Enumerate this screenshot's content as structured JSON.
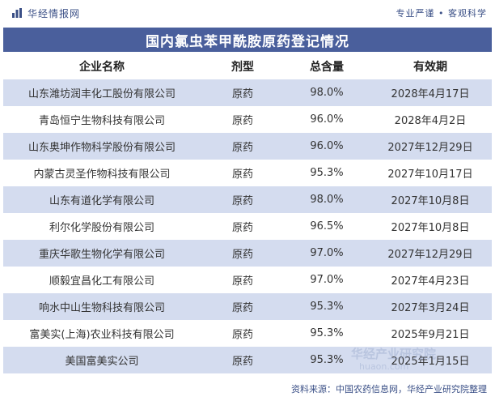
{
  "header": {
    "brand": "华经情报网",
    "slogan": "专业严谨 • 客观科学"
  },
  "title": "国内氯虫苯甲酰胺原药登记情况",
  "table": {
    "columns": [
      "企业名称",
      "剂型",
      "总含量",
      "有效期"
    ],
    "rows": [
      [
        "山东潍坊润丰化工股份有限公司",
        "原药",
        "98.0%",
        "2028年4月17日"
      ],
      [
        "青岛恒宁生物科技有限公司",
        "原药",
        "96.0%",
        "2028年4月2日"
      ],
      [
        "山东奥坤作物科学股份有限公司",
        "原药",
        "96.0%",
        "2027年12月29日"
      ],
      [
        "内蒙古灵圣作物科技有限公司",
        "原药",
        "95.3%",
        "2027年10月17日"
      ],
      [
        "山东有道化学有限公司",
        "原药",
        "98.0%",
        "2027年10月8日"
      ],
      [
        "利尔化学股份有限公司",
        "原药",
        "96.5%",
        "2027年10月8日"
      ],
      [
        "重庆华歌生物化学有限公司",
        "原药",
        "97.0%",
        "2027年12月29日"
      ],
      [
        "顺毅宜昌化工有限公司",
        "原药",
        "97.0%",
        "2027年4月23日"
      ],
      [
        "响水中山生物科技有限公司",
        "原药",
        "95.3%",
        "2027年3月24日"
      ],
      [
        "富美实(上海)农业科技有限公司",
        "原药",
        "95.3%",
        "2025年9月21日"
      ],
      [
        "美国富美实公司",
        "原药",
        "95.3%",
        "2025年1月15日"
      ]
    ]
  },
  "footer": {
    "source": "资料来源：中国农药信息网，华经产业研究院整理"
  },
  "watermark": {
    "text": "华经产业研究院",
    "url": "huaon.com"
  },
  "colors": {
    "accent": "#4a5f9c",
    "stripe": "#d4dcef",
    "brand_text": "#3a4f86"
  },
  "icons": {
    "brand": "bar-chart-logo-icon"
  }
}
